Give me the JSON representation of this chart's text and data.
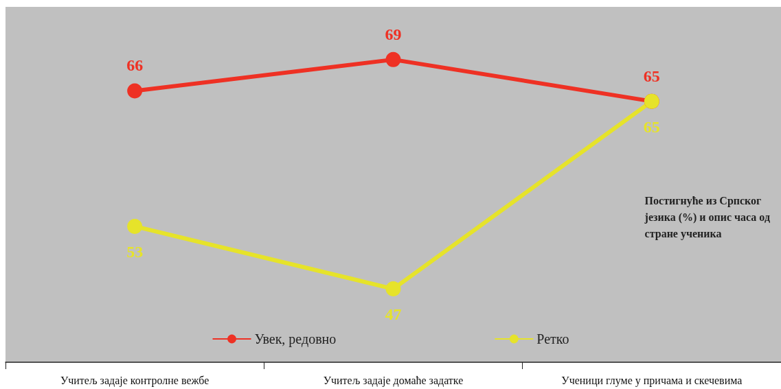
{
  "chart_data": {
    "type": "line",
    "categories": [
      "Учитељ задаје контролне вежбе",
      "Учитељ задаје домаће задатке",
      "Ученици глуме у причама и скечевима"
    ],
    "series": [
      {
        "name": "Увек, редовно",
        "color": "#ee3124",
        "values": [
          66,
          69,
          65
        ]
      },
      {
        "name": "Ретко",
        "color": "#e6e32a",
        "values": [
          53,
          47,
          65
        ]
      }
    ],
    "data_labels": true,
    "marker": "circle",
    "line_style": "solid",
    "grid": false,
    "legend": "bottom",
    "annotations": [
      "Постигнуће из Српског језика (%) и опис часа од стране ученика"
    ]
  }
}
